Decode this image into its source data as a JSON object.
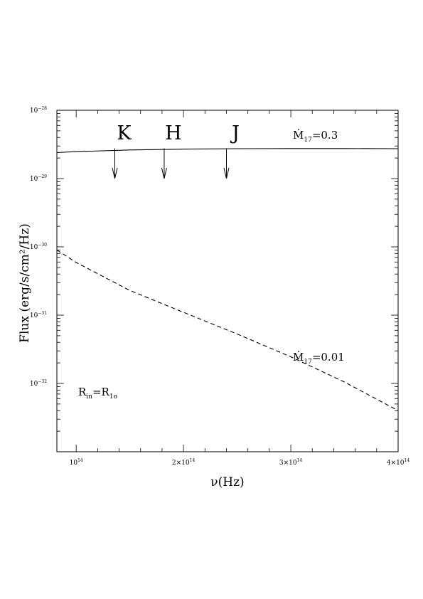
{
  "chart_data": {
    "type": "line",
    "title": "",
    "xlabel": "ν(Hz)",
    "ylabel": "Flux (erg/s/cm²/Hz)",
    "x_scale": "linear",
    "y_scale": "log",
    "xlim": [
      82000000000000.0,
      400000000000000.0
    ],
    "ylim": [
      1e-33,
      1e-28
    ],
    "x_ticks": [
      {
        "value": 100000000000000.0,
        "base": "10",
        "exp": "14"
      },
      {
        "value": 200000000000000.0,
        "base": "2×10",
        "exp": "14"
      },
      {
        "value": 300000000000000.0,
        "base": "3×10",
        "exp": "14"
      },
      {
        "value": 400000000000000.0,
        "base": "4×10",
        "exp": "14"
      }
    ],
    "y_ticks": [
      {
        "value": 1e-28,
        "base": "10",
        "exp": "−28"
      },
      {
        "value": 1e-29,
        "base": "10",
        "exp": "−29"
      },
      {
        "value": 1e-30,
        "base": "10",
        "exp": "−30"
      },
      {
        "value": 1e-31,
        "base": "10",
        "exp": "−31"
      },
      {
        "value": 1e-32,
        "base": "10",
        "exp": "−32"
      }
    ],
    "series": [
      {
        "name": "Ṁ17=0.3",
        "style": "solid",
        "x": [
          82000000000000.0,
          100000000000000.0,
          150000000000000.0,
          200000000000000.0,
          250000000000000.0,
          300000000000000.0,
          350000000000000.0,
          400000000000000.0
        ],
        "y": [
          2.4e-29,
          2.48e-29,
          2.62e-29,
          2.7e-29,
          2.74e-29,
          2.75e-29,
          2.75e-29,
          2.74e-29
        ]
      },
      {
        "name": "Ṁ17=0.01",
        "style": "dashed",
        "x": [
          82000000000000.0,
          100000000000000.0,
          150000000000000.0,
          200000000000000.0,
          250000000000000.0,
          300000000000000.0,
          350000000000000.0,
          400000000000000.0
        ],
        "y": [
          9e-31,
          5.9e-31,
          2.3e-31,
          1.1e-31,
          5.3e-32,
          2.45e-32,
          1.05e-32,
          4e-33
        ]
      }
    ],
    "band_markers": [
      {
        "label": "K",
        "x": 136000000000000.0,
        "arrow_top": 2.4e-29,
        "arrow_bottom": 1e-29
      },
      {
        "label": "H",
        "x": 182000000000000.0,
        "arrow_top": 2.4e-29,
        "arrow_bottom": 1e-29
      },
      {
        "label": "J",
        "x": 240000000000000.0,
        "arrow_top": 2.4e-29,
        "arrow_bottom": 1e-29
      }
    ],
    "annotations": {
      "mdot_high": {
        "prefix": "Ṁ",
        "sub": "17",
        "suffix": "=0.3"
      },
      "mdot_low": {
        "prefix": "Ṁ",
        "sub": "17",
        "suffix": "=0.01"
      },
      "radius": {
        "r1": "R",
        "s1": "in",
        "eq": "=R",
        "s2": "1o"
      }
    }
  }
}
